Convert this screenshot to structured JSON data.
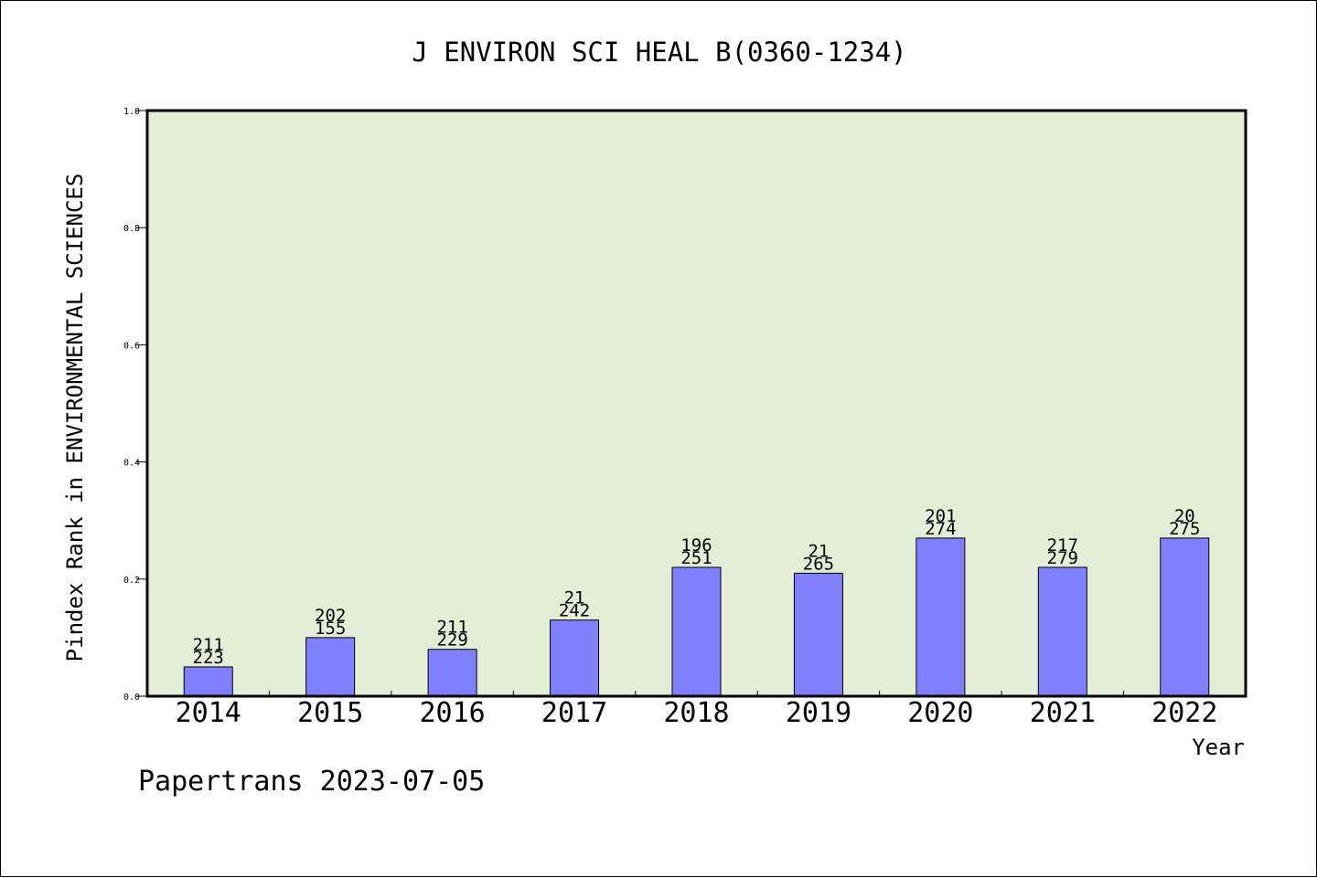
{
  "chart_data": {
    "type": "bar",
    "title": "J ENVIRON SCI HEAL B(0360-1234)",
    "xlabel": "Year",
    "ylabel": "Pindex Rank in ENVIRONMENTAL SCIENCES",
    "footer": "Papertrans 2023-07-05",
    "ylim": [
      0,
      1.0
    ],
    "yticks": [
      0.0,
      0.2,
      0.4,
      0.6,
      0.8,
      1.0
    ],
    "ytick_labels": [
      "0.0",
      "0.2",
      "0.4",
      "0.6",
      "0.8",
      "1.0"
    ],
    "grid": false,
    "categories": [
      "2014",
      "2015",
      "2016",
      "2017",
      "2018",
      "2019",
      "2020",
      "2021",
      "2022"
    ],
    "values": [
      0.05,
      0.1,
      0.08,
      0.13,
      0.22,
      0.21,
      0.27,
      0.22,
      0.27
    ],
    "label_top": [
      "211",
      "202",
      "211",
      "21",
      "196",
      "21",
      "201",
      "217",
      "20"
    ],
    "label_bottom": [
      "223",
      "155",
      "229",
      "242",
      "251",
      "265",
      "274",
      "279",
      "275"
    ],
    "colors": {
      "plot_background": "#e2efd6",
      "bar_fill": "#8080ff",
      "bar_stroke": "#000000",
      "axis": "#000000"
    }
  }
}
